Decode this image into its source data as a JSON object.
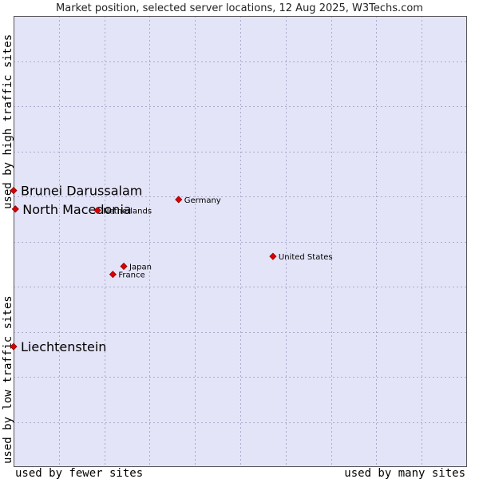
{
  "chart_data": {
    "type": "scatter",
    "title": "Market position, selected server locations, 12 Aug 2025, W3Techs.com",
    "xlabel_left": "used by fewer sites",
    "xlabel_right": "used by many sites",
    "ylabel_bottom": "used by low traffic sites",
    "ylabel_top": "used by high traffic sites",
    "xlim": [
      0,
      100
    ],
    "ylim": [
      0,
      100
    ],
    "grid": true,
    "colors": {
      "plot_background": "#e4e4f8",
      "grid": "#aaaacc",
      "marker": "#dd0000",
      "marker_stroke": "#880000",
      "border": "#555555"
    },
    "points": [
      {
        "name": "Brunei Darussalam",
        "x": 0.0,
        "y": 61.3,
        "highlight": true
      },
      {
        "name": "North Macedonia",
        "x": 0.4,
        "y": 57.2,
        "highlight": true
      },
      {
        "name": "Liechtenstein",
        "x": 0.0,
        "y": 26.7,
        "highlight": true
      },
      {
        "name": "Netherlands",
        "x": 18.5,
        "y": 56.9,
        "highlight": false
      },
      {
        "name": "Germany",
        "x": 36.4,
        "y": 59.3,
        "highlight": false
      },
      {
        "name": "United States",
        "x": 57.2,
        "y": 46.7,
        "highlight": false
      },
      {
        "name": "Japan",
        "x": 24.3,
        "y": 44.5,
        "highlight": false
      },
      {
        "name": "France",
        "x": 21.9,
        "y": 42.7,
        "highlight": false
      }
    ]
  }
}
